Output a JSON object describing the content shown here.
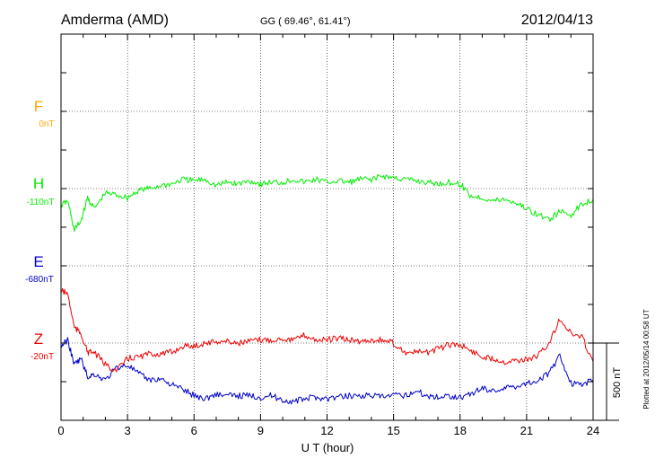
{
  "header": {
    "station": "Amderma (AMD)",
    "coords": "GG ( 69.46°,  61.41°)",
    "date": "2012/04/13"
  },
  "footer": {
    "plotted": "Plotted at 2012/05/14 00:58 UT"
  },
  "colors": {
    "F": "#ffa500",
    "H": "#00ee00",
    "E": "#0000cc",
    "Z": "#ee0000",
    "axis": "#000000"
  },
  "chart_data": {
    "type": "line",
    "xlabel": "U T (hour)",
    "xlim": [
      0,
      24
    ],
    "xticks": [
      0,
      3,
      6,
      9,
      12,
      15,
      18,
      21,
      24
    ],
    "grid": true,
    "scale_bar": {
      "label": "500 nT",
      "value_nT": 500
    },
    "series": [
      {
        "name": "F",
        "offset": "0nT",
        "baseline_nT": 0,
        "x": [],
        "y": []
      },
      {
        "name": "H",
        "offset": "-110nT",
        "x": [
          0,
          0.3,
          0.6,
          0.9,
          1.2,
          1.5,
          2,
          2.5,
          3,
          3.5,
          4,
          4.5,
          5,
          5.5,
          6,
          6.5,
          7,
          7.5,
          8,
          8.5,
          9,
          9.5,
          10,
          10.5,
          11,
          11.5,
          12,
          12.5,
          13,
          13.5,
          14,
          14.5,
          15,
          15.5,
          16,
          16.5,
          17,
          17.5,
          18,
          18.5,
          19,
          19.5,
          20,
          20.5,
          21,
          21.5,
          22,
          22.5,
          23,
          23.5,
          24
        ],
        "y": [
          -110,
          -80,
          -270,
          -210,
          -60,
          -130,
          -30,
          -40,
          -60,
          -10,
          0,
          20,
          30,
          60,
          50,
          60,
          20,
          40,
          30,
          50,
          30,
          40,
          40,
          60,
          40,
          60,
          40,
          50,
          40,
          60,
          60,
          80,
          70,
          60,
          50,
          40,
          30,
          40,
          30,
          -50,
          -60,
          -80,
          -70,
          -90,
          -130,
          -170,
          -200,
          -150,
          -170,
          -100,
          -70
        ]
      },
      {
        "name": "E",
        "offset": "-680nT",
        "x": [
          0,
          0.3,
          0.6,
          0.9,
          1.2,
          1.5,
          2,
          2.5,
          3,
          3.5,
          4,
          4.5,
          5,
          5.5,
          6,
          6.5,
          7,
          7.5,
          8,
          8.5,
          9,
          9.5,
          10,
          10.5,
          11,
          11.5,
          12,
          12.5,
          13,
          13.5,
          14,
          14.5,
          15,
          15.5,
          16,
          16.5,
          17,
          17.5,
          18,
          18.5,
          19,
          19.5,
          20,
          20.5,
          21,
          21.5,
          22,
          22.5,
          23,
          23.5,
          24
        ],
        "y": [
          -520,
          -480,
          -640,
          -600,
          -720,
          -700,
          -740,
          -660,
          -640,
          -700,
          -740,
          -730,
          -770,
          -800,
          -840,
          -860,
          -830,
          -840,
          -840,
          -840,
          -850,
          -840,
          -870,
          -880,
          -860,
          -850,
          -860,
          -850,
          -840,
          -840,
          -840,
          -850,
          -840,
          -840,
          -810,
          -840,
          -850,
          -840,
          -850,
          -830,
          -790,
          -810,
          -790,
          -780,
          -760,
          -740,
          -700,
          -580,
          -760,
          -770,
          -740
        ]
      },
      {
        "name": "Z",
        "offset": "-20nT",
        "x": [
          0,
          0.3,
          0.6,
          0.9,
          1.2,
          1.5,
          2,
          2.5,
          3,
          3.5,
          4,
          4.5,
          5,
          5.5,
          6,
          6.5,
          7,
          7.5,
          8,
          8.5,
          9,
          9.5,
          10,
          10.5,
          11,
          11.5,
          12,
          12.5,
          13,
          13.5,
          14,
          14.5,
          15,
          15.5,
          16,
          16.5,
          17,
          17.5,
          18,
          18.5,
          19,
          19.5,
          20,
          20.5,
          21,
          21.5,
          22,
          22.5,
          23,
          23.5,
          24
        ],
        "y": [
          340,
          320,
          100,
          60,
          -60,
          -60,
          -140,
          -180,
          -100,
          -90,
          -70,
          -70,
          -60,
          -20,
          -20,
          0,
          10,
          10,
          0,
          10,
          20,
          20,
          30,
          20,
          50,
          20,
          20,
          30,
          20,
          10,
          20,
          20,
          0,
          -60,
          -60,
          -60,
          -40,
          -10,
          -10,
          -50,
          -90,
          -100,
          -120,
          -110,
          -110,
          -80,
          -10,
          160,
          60,
          40,
          -120
        ]
      }
    ]
  }
}
